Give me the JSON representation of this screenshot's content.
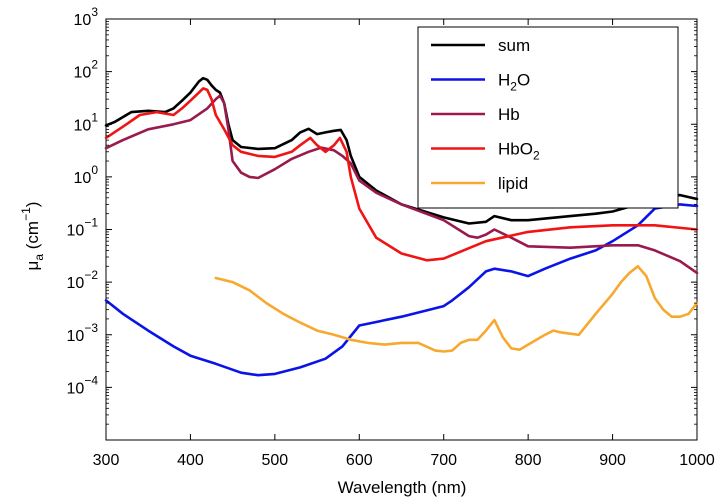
{
  "chart_data": {
    "type": "line",
    "title": "",
    "xlabel": "Wavelength (nm)",
    "ylabel": {
      "base": "μ",
      "sub": "a",
      "rest": " (cm",
      "sup": "−1",
      "end": ")"
    },
    "xlim": [
      300,
      1000
    ],
    "ylim": [
      1e-05,
      1000
    ],
    "yscale": "log",
    "grid": false,
    "legend_position": "top-right",
    "x_ticks": [
      300,
      400,
      500,
      600,
      700,
      800,
      900,
      1000
    ],
    "x_tick_labels": [
      "300",
      "400",
      "500",
      "600",
      "700",
      "800",
      "900",
      "1000"
    ],
    "y_ticks": [
      {
        "value": 0.0001,
        "base": "10",
        "exp": "−4"
      },
      {
        "value": 0.001,
        "base": "10",
        "exp": "−3"
      },
      {
        "value": 0.01,
        "base": "10",
        "exp": "−2"
      },
      {
        "value": 0.1,
        "base": "10",
        "exp": "−1"
      },
      {
        "value": 1,
        "base": "10",
        "exp": "0"
      },
      {
        "value": 10,
        "base": "10",
        "exp": "1"
      },
      {
        "value": 100,
        "base": "10",
        "exp": "2"
      },
      {
        "value": 1000,
        "base": "10",
        "exp": "3"
      }
    ],
    "series": [
      {
        "name": "sum",
        "legend": [
          {
            "text": "sum"
          }
        ],
        "color": "#000000",
        "x": [
          300,
          310,
          330,
          350,
          370,
          380,
          390,
          400,
          410,
          415,
          420,
          425,
          430,
          435,
          440,
          445,
          450,
          460,
          480,
          500,
          520,
          530,
          540,
          550,
          560,
          570,
          578,
          585,
          590,
          600,
          620,
          650,
          700,
          730,
          750,
          760,
          780,
          800,
          850,
          880,
          900,
          930,
          950,
          980,
          1000
        ],
        "y": [
          9.5,
          11,
          17,
          18,
          17,
          20,
          28,
          40,
          65,
          75,
          70,
          55,
          45,
          40,
          25,
          10,
          5,
          3.7,
          3.4,
          3.5,
          5,
          7,
          8.2,
          6.5,
          7,
          7.5,
          7.8,
          5,
          2.5,
          1,
          0.55,
          0.3,
          0.17,
          0.13,
          0.14,
          0.18,
          0.15,
          0.15,
          0.18,
          0.2,
          0.22,
          0.3,
          0.42,
          0.45,
          0.38
        ]
      },
      {
        "name": "H2O",
        "legend": [
          {
            "text": "H"
          },
          {
            "text": "2",
            "sub": true
          },
          {
            "text": "O"
          }
        ],
        "color": "#0a14e6",
        "x": [
          300,
          320,
          350,
          380,
          400,
          430,
          460,
          480,
          500,
          530,
          560,
          580,
          600,
          650,
          700,
          710,
          730,
          750,
          760,
          780,
          800,
          820,
          850,
          880,
          900,
          930,
          950,
          980,
          1000
        ],
        "y": [
          0.0045,
          0.0025,
          0.0012,
          0.0006,
          0.0004,
          0.00028,
          0.00019,
          0.00017,
          0.00018,
          0.00024,
          0.00035,
          0.0006,
          0.0015,
          0.0022,
          0.0035,
          0.0045,
          0.008,
          0.016,
          0.018,
          0.016,
          0.013,
          0.018,
          0.028,
          0.04,
          0.06,
          0.12,
          0.25,
          0.3,
          0.28
        ]
      },
      {
        "name": "Hb",
        "legend": [
          {
            "text": "Hb"
          }
        ],
        "color": "#991a4d",
        "x": [
          300,
          320,
          350,
          380,
          400,
          420,
          430,
          435,
          440,
          445,
          450,
          460,
          470,
          480,
          500,
          520,
          540,
          555,
          570,
          580,
          590,
          600,
          620,
          650,
          700,
          730,
          740,
          750,
          760,
          780,
          800,
          850,
          900,
          930,
          950,
          980,
          1000
        ],
        "y": [
          3.5,
          5,
          8,
          10,
          12,
          20,
          30,
          35,
          25,
          8,
          2,
          1.2,
          1,
          0.95,
          1.4,
          2.2,
          3,
          3.6,
          3.2,
          2.5,
          1.8,
          0.85,
          0.5,
          0.3,
          0.15,
          0.075,
          0.07,
          0.08,
          0.1,
          0.07,
          0.048,
          0.045,
          0.05,
          0.05,
          0.04,
          0.025,
          0.015
        ]
      },
      {
        "name": "HbO2",
        "legend": [
          {
            "text": "HbO"
          },
          {
            "text": "2",
            "sub": true
          }
        ],
        "color": "#f01414",
        "x": [
          300,
          320,
          340,
          360,
          380,
          390,
          400,
          410,
          415,
          420,
          425,
          430,
          440,
          450,
          460,
          480,
          500,
          520,
          530,
          542,
          550,
          560,
          570,
          577,
          585,
          590,
          600,
          620,
          650,
          680,
          700,
          750,
          800,
          850,
          900,
          950,
          1000
        ],
        "y": [
          5.5,
          9,
          15,
          17,
          15,
          20,
          28,
          40,
          48,
          45,
          30,
          15,
          8,
          4,
          3,
          2.5,
          2.4,
          3,
          4,
          5.5,
          4,
          3,
          4,
          5.5,
          3,
          1,
          0.25,
          0.07,
          0.035,
          0.026,
          0.028,
          0.06,
          0.09,
          0.11,
          0.12,
          0.12,
          0.1
        ]
      },
      {
        "name": "lipid",
        "legend": [
          {
            "text": "lipid"
          }
        ],
        "color": "#f7a92f",
        "x": [
          430,
          450,
          470,
          490,
          510,
          530,
          550,
          570,
          590,
          610,
          630,
          650,
          670,
          690,
          700,
          710,
          720,
          730,
          740,
          750,
          760,
          770,
          780,
          790,
          800,
          820,
          830,
          840,
          860,
          880,
          900,
          910,
          920,
          930,
          940,
          950,
          960,
          970,
          980,
          990,
          1000
        ],
        "y": [
          0.012,
          0.01,
          0.007,
          0.004,
          0.0025,
          0.0017,
          0.0012,
          0.001,
          0.0008,
          0.0007,
          0.00065,
          0.0007,
          0.0007,
          0.0005,
          0.00048,
          0.0005,
          0.0007,
          0.0008,
          0.0008,
          0.0012,
          0.0019,
          0.0009,
          0.00055,
          0.00052,
          0.00065,
          0.001,
          0.0012,
          0.0011,
          0.001,
          0.0025,
          0.006,
          0.01,
          0.015,
          0.02,
          0.013,
          0.005,
          0.003,
          0.0022,
          0.0022,
          0.0025,
          0.004
        ]
      }
    ]
  }
}
